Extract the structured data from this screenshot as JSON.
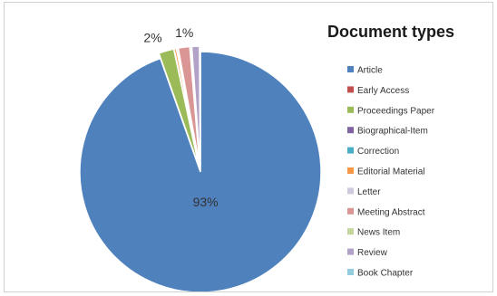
{
  "chart_data": {
    "type": "pie",
    "title": "Document types",
    "legend_position": "right",
    "series": [
      {
        "name": "Article",
        "value": 93,
        "color": "#4f81bd",
        "label": "93%"
      },
      {
        "name": "Early Access",
        "value": 0,
        "color": "#c0504d",
        "label": ""
      },
      {
        "name": "Proceedings Paper",
        "value": 2,
        "color": "#9bbb59",
        "label": "2%"
      },
      {
        "name": "Biographical-Item",
        "value": 0,
        "color": "#8064a2",
        "label": ""
      },
      {
        "name": "Correction",
        "value": 0,
        "color": "#4bacc6",
        "label": ""
      },
      {
        "name": "Editorial Material",
        "value": 0.3,
        "color": "#f79646",
        "label": ""
      },
      {
        "name": "Letter",
        "value": 0.2,
        "color": "#d0c8df",
        "label": ""
      },
      {
        "name": "Meeting Abstract",
        "value": 1.5,
        "color": "#d99694",
        "label": ""
      },
      {
        "name": "News Item",
        "value": 0.2,
        "color": "#c3d69b",
        "label": ""
      },
      {
        "name": "Review",
        "value": 1,
        "color": "#b3a2c7",
        "label": "1%"
      },
      {
        "name": "Book Chapter",
        "value": 0.1,
        "color": "#93cddd",
        "label": ""
      }
    ]
  }
}
